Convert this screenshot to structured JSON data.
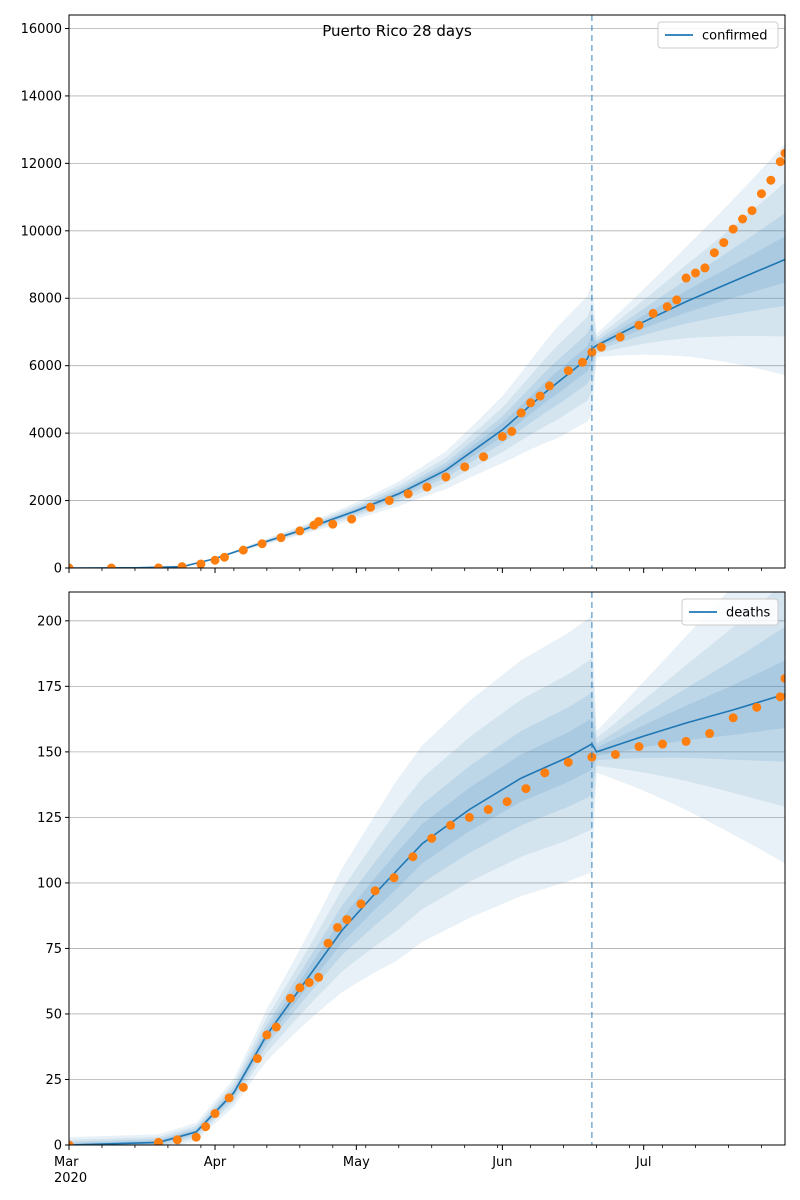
{
  "chart_data": [
    {
      "type": "line",
      "title": "Puerto Rico 28 days",
      "xlabel": "",
      "ylabel": "",
      "x_range": [
        "2020-03-01",
        "2020-07-31"
      ],
      "ylim": [
        0,
        16400
      ],
      "yticks": [
        0,
        2000,
        4000,
        6000,
        8000,
        10000,
        12000,
        14000,
        16000
      ],
      "grid": "horizontal",
      "legend_position": "top-right",
      "forecast_start": "2020-06-20",
      "series": [
        {
          "name": "confirmed",
          "kind": "model",
          "color": "#1f77b4",
          "x": [
            "2020-03-01",
            "2020-03-15",
            "2020-03-25",
            "2020-04-01",
            "2020-04-10",
            "2020-04-20",
            "2020-05-01",
            "2020-05-10",
            "2020-05-20",
            "2020-06-01",
            "2020-06-10",
            "2020-06-19",
            "2020-06-20",
            "2020-06-21",
            "2020-07-01",
            "2020-07-10",
            "2020-07-20",
            "2020-07-31"
          ],
          "values": [
            0,
            5,
            40,
            280,
            700,
            1150,
            1700,
            2200,
            2900,
            4100,
            5200,
            6200,
            6500,
            6600,
            7300,
            7900,
            8500,
            9150
          ]
        },
        {
          "name": "",
          "kind": "observed",
          "color": "#ff7f0e",
          "x": [
            "2020-03-01",
            "2020-03-10",
            "2020-03-20",
            "2020-03-25",
            "2020-03-29",
            "2020-04-01",
            "2020-04-03",
            "2020-04-07",
            "2020-04-11",
            "2020-04-15",
            "2020-04-19",
            "2020-04-22",
            "2020-04-23",
            "2020-04-26",
            "2020-04-30",
            "2020-05-04",
            "2020-05-08",
            "2020-05-12",
            "2020-05-16",
            "2020-05-20",
            "2020-05-24",
            "2020-05-28",
            "2020-06-01",
            "2020-06-03",
            "2020-06-05",
            "2020-06-07",
            "2020-06-09",
            "2020-06-11",
            "2020-06-15",
            "2020-06-18",
            "2020-06-20",
            "2020-06-22",
            "2020-06-26",
            "2020-06-30",
            "2020-07-03",
            "2020-07-06",
            "2020-07-08",
            "2020-07-10",
            "2020-07-12",
            "2020-07-14",
            "2020-07-16",
            "2020-07-18",
            "2020-07-20",
            "2020-07-22",
            "2020-07-24",
            "2020-07-26",
            "2020-07-28",
            "2020-07-30",
            "2020-07-31"
          ],
          "values": [
            0,
            0,
            2,
            40,
            120,
            230,
            320,
            530,
            720,
            900,
            1100,
            1270,
            1380,
            1300,
            1450,
            1800,
            2000,
            2200,
            2400,
            2700,
            3000,
            3300,
            3900,
            4050,
            4600,
            4900,
            5100,
            5400,
            5850,
            6100,
            6400,
            6550,
            6850,
            7200,
            7550,
            7750,
            7950,
            8600,
            8750,
            8900,
            9350,
            9650,
            10050,
            10350,
            10600,
            11100,
            11500,
            12050,
            12300
          ]
        }
      ]
    },
    {
      "type": "line",
      "title": "",
      "xlabel": "",
      "ylabel": "",
      "x_range": [
        "2020-03-01",
        "2020-07-31"
      ],
      "ylim": [
        0,
        211
      ],
      "yticks": [
        0,
        25,
        50,
        75,
        100,
        125,
        150,
        175,
        200
      ],
      "xticks": [
        "Mar\n2020",
        "Apr",
        "May",
        "Jun",
        "Jul"
      ],
      "grid": "horizontal",
      "legend_position": "top-right",
      "forecast_start": "2020-06-20",
      "series": [
        {
          "name": "deaths",
          "kind": "model",
          "color": "#1f77b4",
          "x": [
            "2020-03-01",
            "2020-03-20",
            "2020-03-28",
            "2020-04-05",
            "2020-04-12",
            "2020-04-20",
            "2020-04-28",
            "2020-05-05",
            "2020-05-15",
            "2020-05-25",
            "2020-06-05",
            "2020-06-15",
            "2020-06-19",
            "2020-06-20",
            "2020-06-21",
            "2020-07-01",
            "2020-07-10",
            "2020-07-20",
            "2020-07-31"
          ],
          "values": [
            0,
            1,
            5,
            20,
            42,
            62,
            82,
            96,
            115,
            128,
            140,
            148,
            152,
            153,
            150,
            156,
            161,
            166,
            172
          ]
        },
        {
          "name": "",
          "kind": "observed",
          "color": "#ff7f0e",
          "x": [
            "2020-03-01",
            "2020-03-20",
            "2020-03-24",
            "2020-03-28",
            "2020-03-30",
            "2020-04-01",
            "2020-04-04",
            "2020-04-07",
            "2020-04-10",
            "2020-04-12",
            "2020-04-14",
            "2020-04-17",
            "2020-04-19",
            "2020-04-21",
            "2020-04-23",
            "2020-04-25",
            "2020-04-27",
            "2020-04-29",
            "2020-05-02",
            "2020-05-05",
            "2020-05-09",
            "2020-05-13",
            "2020-05-17",
            "2020-05-21",
            "2020-05-25",
            "2020-05-29",
            "2020-06-02",
            "2020-06-06",
            "2020-06-10",
            "2020-06-15",
            "2020-06-20",
            "2020-06-25",
            "2020-06-30",
            "2020-07-05",
            "2020-07-10",
            "2020-07-15",
            "2020-07-20",
            "2020-07-25",
            "2020-07-30",
            "2020-07-31"
          ],
          "values": [
            0,
            1,
            2,
            3,
            7,
            12,
            18,
            22,
            33,
            42,
            45,
            56,
            60,
            62,
            64,
            77,
            83,
            86,
            92,
            97,
            102,
            110,
            117,
            122,
            125,
            128,
            131,
            136,
            142,
            146,
            148,
            149,
            152,
            153,
            154,
            157,
            163,
            167,
            171,
            178
          ]
        }
      ]
    }
  ]
}
